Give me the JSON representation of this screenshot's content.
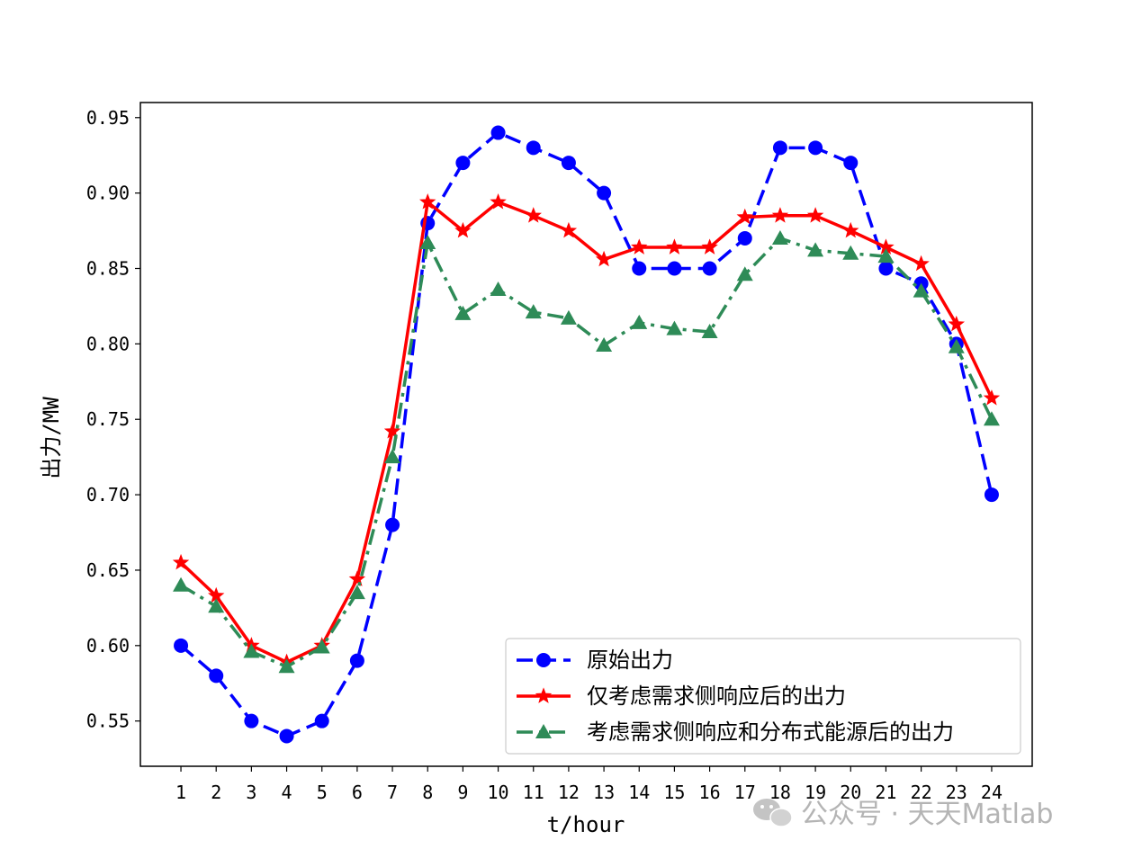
{
  "chart_data": {
    "type": "line",
    "xlabel": "t/hour",
    "ylabel": "出力/MW",
    "x": [
      1,
      2,
      3,
      4,
      5,
      6,
      7,
      8,
      9,
      10,
      11,
      12,
      13,
      14,
      15,
      16,
      17,
      18,
      19,
      20,
      21,
      22,
      23,
      24
    ],
    "xticks": [
      "1",
      "2",
      "3",
      "4",
      "5",
      "6",
      "7",
      "8",
      "9",
      "10",
      "11",
      "12",
      "13",
      "14",
      "15",
      "16",
      "17",
      "18",
      "19",
      "20",
      "21",
      "22",
      "23",
      "24"
    ],
    "yticks": [
      "0.55",
      "0.60",
      "0.65",
      "0.70",
      "0.75",
      "0.80",
      "0.85",
      "0.90",
      "0.95"
    ],
    "ylim": [
      0.52,
      0.96
    ],
    "xlim": [
      -0.15,
      25.15
    ],
    "grid": false,
    "legend_position": "lower-right",
    "series": [
      {
        "name": "原始出力",
        "color": "#0000ff",
        "line_style": "dashed",
        "marker": "circle",
        "values": [
          0.6,
          0.58,
          0.55,
          0.54,
          0.55,
          0.59,
          0.68,
          0.88,
          0.92,
          0.94,
          0.93,
          0.92,
          0.9,
          0.85,
          0.85,
          0.85,
          0.87,
          0.93,
          0.93,
          0.92,
          0.85,
          0.84,
          0.8,
          0.7
        ]
      },
      {
        "name": "仅考虑需求侧响应后的出力",
        "color": "#ff0000",
        "line_style": "solid",
        "marker": "star",
        "values": [
          0.655,
          0.633,
          0.6,
          0.589,
          0.6,
          0.644,
          0.742,
          0.894,
          0.875,
          0.894,
          0.885,
          0.875,
          0.856,
          0.864,
          0.864,
          0.864,
          0.884,
          0.885,
          0.885,
          0.875,
          0.864,
          0.853,
          0.813,
          0.764
        ]
      },
      {
        "name": "考虑需求侧响应和分布式能源后的出力",
        "color": "#2e8b57",
        "line_style": "dashdot",
        "marker": "triangle",
        "values": [
          0.64,
          0.626,
          0.596,
          0.586,
          0.599,
          0.635,
          0.725,
          0.867,
          0.82,
          0.836,
          0.821,
          0.817,
          0.799,
          0.814,
          0.81,
          0.808,
          0.846,
          0.87,
          0.862,
          0.86,
          0.858,
          0.835,
          0.798,
          0.75
        ]
      }
    ]
  },
  "watermark": {
    "text": "公众号 · 天天Matlab",
    "icon": "wechat-icon"
  }
}
